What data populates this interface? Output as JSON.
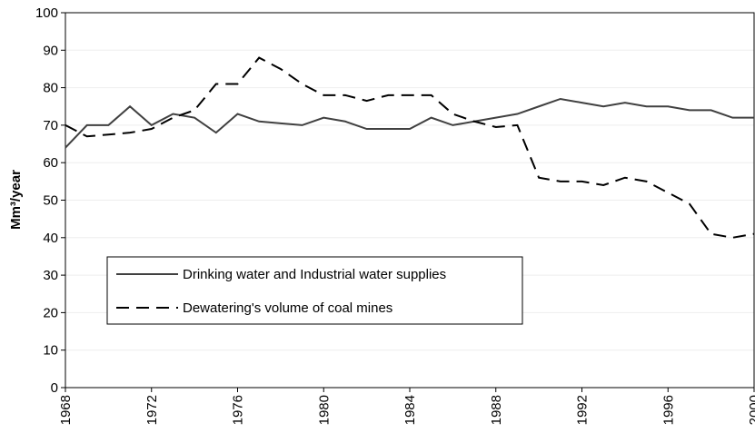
{
  "chart_data": {
    "type": "line",
    "y_label": "Mm³/year",
    "x": [
      1968,
      1969,
      1970,
      1971,
      1972,
      1973,
      1974,
      1975,
      1976,
      1977,
      1978,
      1979,
      1980,
      1981,
      1982,
      1983,
      1984,
      1985,
      1986,
      1987,
      1988,
      1989,
      1990,
      1991,
      1992,
      1993,
      1994,
      1995,
      1996,
      1997,
      1998,
      1999,
      2000
    ],
    "series": [
      {
        "name": "Drinking water and Industrial water supplies",
        "color": "#404040",
        "dash": "solid",
        "values": [
          64,
          70,
          70,
          75,
          70,
          73,
          72,
          68,
          73,
          71,
          70.5,
          70,
          72,
          71,
          69,
          69,
          69,
          72,
          70,
          71,
          72,
          73,
          75,
          77,
          76,
          75,
          76,
          75,
          75,
          74,
          74,
          72,
          72
        ]
      },
      {
        "name": "Dewatering's volume of coal mines",
        "color": "#000000",
        "dash": "dashed",
        "values": [
          70,
          67,
          67.5,
          68,
          69,
          72,
          74,
          81,
          81,
          88,
          85,
          81,
          78,
          78,
          76.5,
          78,
          78,
          78,
          73,
          71,
          69.5,
          70,
          56,
          55,
          55,
          54,
          56,
          55,
          52,
          49,
          41,
          40,
          41
        ]
      }
    ],
    "xlim": [
      1968,
      2000
    ],
    "xticks": [
      1968,
      1972,
      1976,
      1980,
      1984,
      1988,
      1992,
      1996,
      2000
    ],
    "ylim": [
      0,
      100
    ],
    "yticks": [
      0,
      10,
      20,
      30,
      40,
      50,
      60,
      70,
      80,
      90,
      100
    ],
    "grid": true
  }
}
